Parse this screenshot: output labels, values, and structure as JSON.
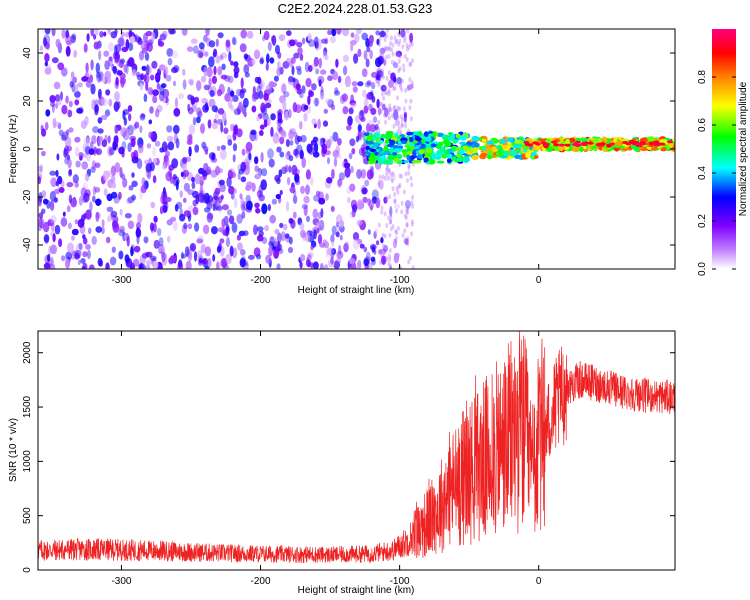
{
  "title": "C2E2.2024.228.01.53.G23",
  "chart_data": [
    {
      "type": "heatmap",
      "xlabel": "Height of straight line (km)",
      "ylabel": "Frequency (Hz)",
      "xlim": [
        -360,
        98
      ],
      "ylim": [
        -50,
        50
      ],
      "xticks": [
        -300,
        -200,
        -100,
        0
      ],
      "yticks": [
        -40,
        -20,
        0,
        20,
        40
      ],
      "colorbar": {
        "label": "Normalized spectral amplitude",
        "range": [
          0.0,
          1.0
        ],
        "ticks": [
          0.0,
          0.2,
          0.4,
          0.6,
          0.8
        ],
        "colors": [
          "#ffffff",
          "#8000ff",
          "#0000ff",
          "#00ffff",
          "#00ff00",
          "#ffff00",
          "#ff8000",
          "#ff0000",
          "#ff0080"
        ]
      },
      "regions": [
        {
          "x": [
            -360,
            -120
          ],
          "y": [
            -50,
            50
          ],
          "amplitude": [
            0.05,
            0.25
          ],
          "description_color": "#8000ff"
        },
        {
          "x": [
            -120,
            -50
          ],
          "y": [
            -5,
            8
          ],
          "amplitude": [
            0.2,
            0.5
          ]
        },
        {
          "x": [
            -50,
            0
          ],
          "y": [
            -3,
            4
          ],
          "amplitude": [
            0.3,
            0.8
          ]
        },
        {
          "x": [
            0,
            98
          ],
          "y": [
            0,
            4
          ],
          "amplitude": [
            0.4,
            0.9
          ]
        }
      ]
    },
    {
      "type": "line",
      "xlabel": "Height of straight line (km)",
      "ylabel": "SNR (10 * v/v)",
      "xlim": [
        -360,
        98
      ],
      "ylim": [
        0,
        2200
      ],
      "xticks": [
        -300,
        -200,
        -100,
        0
      ],
      "yticks": [
        0,
        500,
        1000,
        1500,
        2000
      ],
      "color": "#ee2222",
      "series": [
        {
          "x": [
            -360,
            -330,
            -300,
            -270,
            -240,
            -210,
            -180,
            -150,
            -120,
            -105,
            -95,
            -85,
            -75,
            -65,
            -55,
            -45,
            -35,
            -25,
            -15,
            -10,
            -5,
            0,
            10,
            20,
            30,
            40,
            50,
            60,
            70,
            80,
            98
          ],
          "values": [
            180,
            190,
            185,
            175,
            160,
            150,
            145,
            140,
            150,
            180,
            260,
            380,
            500,
            700,
            850,
            950,
            1050,
            1150,
            1300,
            1250,
            900,
            1150,
            1450,
            1680,
            1750,
            1720,
            1680,
            1640,
            1620,
            1600,
            1590
          ]
        }
      ]
    }
  ]
}
